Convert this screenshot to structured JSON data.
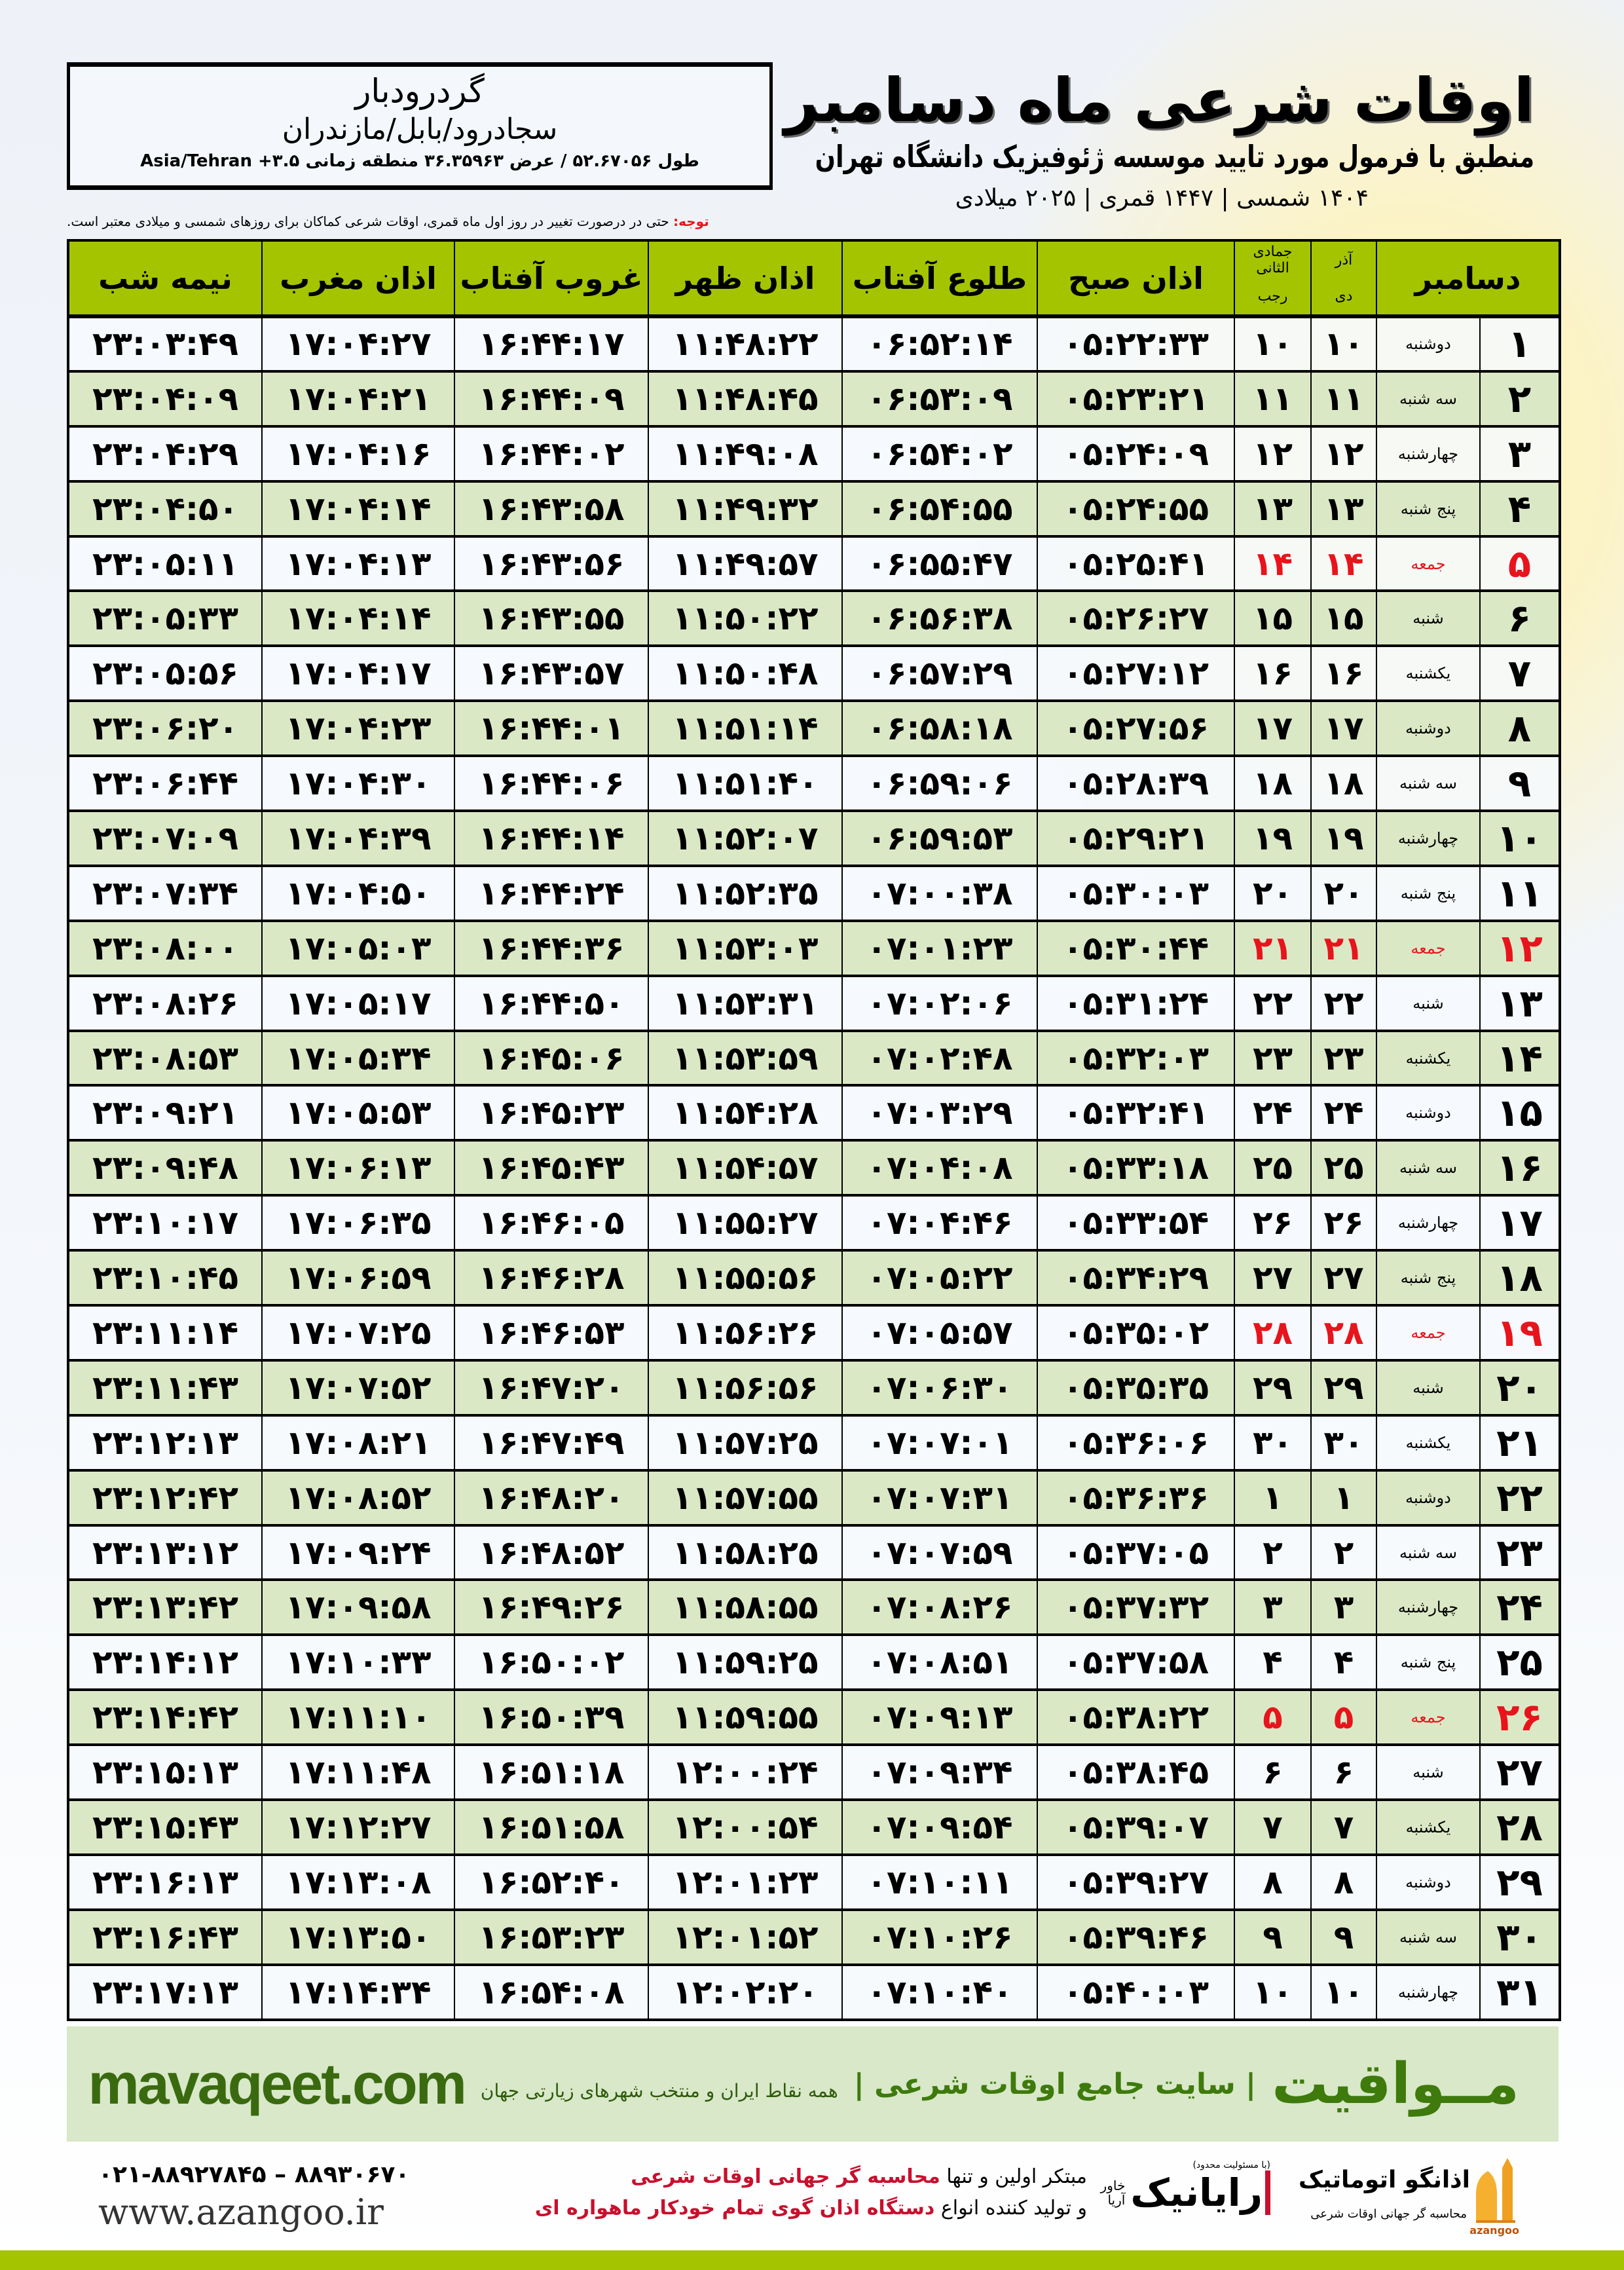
{
  "location": {
    "name": "گردرودبار",
    "path": "سجادرود/بابل/مازندران",
    "coords": "طول ۵۲.۶۷۰۵۶ / عرض ۳۶.۳۵۹۶۳ منطقه زمانی ۳.۵+ Asia/Tehran"
  },
  "header": {
    "title": "اوقات شرعی ماه دسامبر",
    "subtitle": "منطبق با فرمول مورد تایید موسسه ژئوفیزیک دانشگاه تهران",
    "years": "۱۴۰۴ شمسی | ۱۴۴۷ قمری | ۲۰۲۵ میلادی"
  },
  "note": {
    "label": "توجه:",
    "text": " حتی در درصورت تغییر در روز اول ماه قمری، اوقات شرعی کماکان برای روزهای شمسی و میلادی معتبر است."
  },
  "table": {
    "columns": {
      "month": "دسامبر",
      "shamsi_top": "آذر",
      "shamsi_bottom": "دی",
      "qamari_top": "جمادی الثانی",
      "qamari_bottom": "رجب",
      "sobh": "اذان صبح",
      "tolu": "طلوع آفتاب",
      "zohr": "اذان ظهر",
      "ghorub": "غروب آفتاب",
      "maghrib": "اذان مغرب",
      "nime": "نیمه شب"
    },
    "friday_color": "#e8141c",
    "header_color": "#a5c400",
    "rows": [
      [
        "۱",
        "دوشنبه",
        "۱۰",
        "۱۰",
        "۰۵:۲۲:۳۳",
        "۰۶:۵۲:۱۴",
        "۱۱:۴۸:۲۲",
        "۱۶:۴۴:۱۷",
        "۱۷:۰۴:۲۷",
        "۲۳:۰۳:۴۹"
      ],
      [
        "۲",
        "سه شنبه",
        "۱۱",
        "۱۱",
        "۰۵:۲۳:۲۱",
        "۰۶:۵۳:۰۹",
        "۱۱:۴۸:۴۵",
        "۱۶:۴۴:۰۹",
        "۱۷:۰۴:۲۱",
        "۲۳:۰۴:۰۹"
      ],
      [
        "۳",
        "چهارشنبه",
        "۱۲",
        "۱۲",
        "۰۵:۲۴:۰۹",
        "۰۶:۵۴:۰۲",
        "۱۱:۴۹:۰۸",
        "۱۶:۴۴:۰۲",
        "۱۷:۰۴:۱۶",
        "۲۳:۰۴:۲۹"
      ],
      [
        "۴",
        "پنج شنبه",
        "۱۳",
        "۱۳",
        "۰۵:۲۴:۵۵",
        "۰۶:۵۴:۵۵",
        "۱۱:۴۹:۳۲",
        "۱۶:۴۳:۵۸",
        "۱۷:۰۴:۱۴",
        "۲۳:۰۴:۵۰"
      ],
      [
        "۵",
        "جمعه",
        "۱۴",
        "۱۴",
        "۰۵:۲۵:۴۱",
        "۰۶:۵۵:۴۷",
        "۱۱:۴۹:۵۷",
        "۱۶:۴۳:۵۶",
        "۱۷:۰۴:۱۳",
        "۲۳:۰۵:۱۱"
      ],
      [
        "۶",
        "شنبه",
        "۱۵",
        "۱۵",
        "۰۵:۲۶:۲۷",
        "۰۶:۵۶:۳۸",
        "۱۱:۵۰:۲۲",
        "۱۶:۴۳:۵۵",
        "۱۷:۰۴:۱۴",
        "۲۳:۰۵:۳۳"
      ],
      [
        "۷",
        "یکشنبه",
        "۱۶",
        "۱۶",
        "۰۵:۲۷:۱۲",
        "۰۶:۵۷:۲۹",
        "۱۱:۵۰:۴۸",
        "۱۶:۴۳:۵۷",
        "۱۷:۰۴:۱۷",
        "۲۳:۰۵:۵۶"
      ],
      [
        "۸",
        "دوشنبه",
        "۱۷",
        "۱۷",
        "۰۵:۲۷:۵۶",
        "۰۶:۵۸:۱۸",
        "۱۱:۵۱:۱۴",
        "۱۶:۴۴:۰۱",
        "۱۷:۰۴:۲۳",
        "۲۳:۰۶:۲۰"
      ],
      [
        "۹",
        "سه شنبه",
        "۱۸",
        "۱۸",
        "۰۵:۲۸:۳۹",
        "۰۶:۵۹:۰۶",
        "۱۱:۵۱:۴۰",
        "۱۶:۴۴:۰۶",
        "۱۷:۰۴:۳۰",
        "۲۳:۰۶:۴۴"
      ],
      [
        "۱۰",
        "چهارشنبه",
        "۱۹",
        "۱۹",
        "۰۵:۲۹:۲۱",
        "۰۶:۵۹:۵۳",
        "۱۱:۵۲:۰۷",
        "۱۶:۴۴:۱۴",
        "۱۷:۰۴:۳۹",
        "۲۳:۰۷:۰۹"
      ],
      [
        "۱۱",
        "پنج شنبه",
        "۲۰",
        "۲۰",
        "۰۵:۳۰:۰۳",
        "۰۷:۰۰:۳۸",
        "۱۱:۵۲:۳۵",
        "۱۶:۴۴:۲۴",
        "۱۷:۰۴:۵۰",
        "۲۳:۰۷:۳۴"
      ],
      [
        "۱۲",
        "جمعه",
        "۲۱",
        "۲۱",
        "۰۵:۳۰:۴۴",
        "۰۷:۰۱:۲۳",
        "۱۱:۵۳:۰۳",
        "۱۶:۴۴:۳۶",
        "۱۷:۰۵:۰۳",
        "۲۳:۰۸:۰۰"
      ],
      [
        "۱۳",
        "شنبه",
        "۲۲",
        "۲۲",
        "۰۵:۳۱:۲۴",
        "۰۷:۰۲:۰۶",
        "۱۱:۵۳:۳۱",
        "۱۶:۴۴:۵۰",
        "۱۷:۰۵:۱۷",
        "۲۳:۰۸:۲۶"
      ],
      [
        "۱۴",
        "یکشنبه",
        "۲۳",
        "۲۳",
        "۰۵:۳۲:۰۳",
        "۰۷:۰۲:۴۸",
        "۱۱:۵۳:۵۹",
        "۱۶:۴۵:۰۶",
        "۱۷:۰۵:۳۴",
        "۲۳:۰۸:۵۳"
      ],
      [
        "۱۵",
        "دوشنبه",
        "۲۴",
        "۲۴",
        "۰۵:۳۲:۴۱",
        "۰۷:۰۳:۲۹",
        "۱۱:۵۴:۲۸",
        "۱۶:۴۵:۲۳",
        "۱۷:۰۵:۵۳",
        "۲۳:۰۹:۲۱"
      ],
      [
        "۱۶",
        "سه شنبه",
        "۲۵",
        "۲۵",
        "۰۵:۳۳:۱۸",
        "۰۷:۰۴:۰۸",
        "۱۱:۵۴:۵۷",
        "۱۶:۴۵:۴۳",
        "۱۷:۰۶:۱۳",
        "۲۳:۰۹:۴۸"
      ],
      [
        "۱۷",
        "چهارشنبه",
        "۲۶",
        "۲۶",
        "۰۵:۳۳:۵۴",
        "۰۷:۰۴:۴۶",
        "۱۱:۵۵:۲۷",
        "۱۶:۴۶:۰۵",
        "۱۷:۰۶:۳۵",
        "۲۳:۱۰:۱۷"
      ],
      [
        "۱۸",
        "پنج شنبه",
        "۲۷",
        "۲۷",
        "۰۵:۳۴:۲۹",
        "۰۷:۰۵:۲۲",
        "۱۱:۵۵:۵۶",
        "۱۶:۴۶:۲۸",
        "۱۷:۰۶:۵۹",
        "۲۳:۱۰:۴۵"
      ],
      [
        "۱۹",
        "جمعه",
        "۲۸",
        "۲۸",
        "۰۵:۳۵:۰۲",
        "۰۷:۰۵:۵۷",
        "۱۱:۵۶:۲۶",
        "۱۶:۴۶:۵۳",
        "۱۷:۰۷:۲۵",
        "۲۳:۱۱:۱۴"
      ],
      [
        "۲۰",
        "شنبه",
        "۲۹",
        "۲۹",
        "۰۵:۳۵:۳۵",
        "۰۷:۰۶:۳۰",
        "۱۱:۵۶:۵۶",
        "۱۶:۴۷:۲۰",
        "۱۷:۰۷:۵۲",
        "۲۳:۱۱:۴۳"
      ],
      [
        "۲۱",
        "یکشنبه",
        "۳۰",
        "۳۰",
        "۰۵:۳۶:۰۶",
        "۰۷:۰۷:۰۱",
        "۱۱:۵۷:۲۵",
        "۱۶:۴۷:۴۹",
        "۱۷:۰۸:۲۱",
        "۲۳:۱۲:۱۳"
      ],
      [
        "۲۲",
        "دوشنبه",
        "۱",
        "۱",
        "۰۵:۳۶:۳۶",
        "۰۷:۰۷:۳۱",
        "۱۱:۵۷:۵۵",
        "۱۶:۴۸:۲۰",
        "۱۷:۰۸:۵۲",
        "۲۳:۱۲:۴۲"
      ],
      [
        "۲۳",
        "سه شنبه",
        "۲",
        "۲",
        "۰۵:۳۷:۰۵",
        "۰۷:۰۷:۵۹",
        "۱۱:۵۸:۲۵",
        "۱۶:۴۸:۵۲",
        "۱۷:۰۹:۲۴",
        "۲۳:۱۳:۱۲"
      ],
      [
        "۲۴",
        "چهارشنبه",
        "۳",
        "۳",
        "۰۵:۳۷:۳۲",
        "۰۷:۰۸:۲۶",
        "۱۱:۵۸:۵۵",
        "۱۶:۴۹:۲۶",
        "۱۷:۰۹:۵۸",
        "۲۳:۱۳:۴۲"
      ],
      [
        "۲۵",
        "پنج شنبه",
        "۴",
        "۴",
        "۰۵:۳۷:۵۸",
        "۰۷:۰۸:۵۱",
        "۱۱:۵۹:۲۵",
        "۱۶:۵۰:۰۲",
        "۱۷:۱۰:۳۳",
        "۲۳:۱۴:۱۲"
      ],
      [
        "۲۶",
        "جمعه",
        "۵",
        "۵",
        "۰۵:۳۸:۲۲",
        "۰۷:۰۹:۱۳",
        "۱۱:۵۹:۵۵",
        "۱۶:۵۰:۳۹",
        "۱۷:۱۱:۱۰",
        "۲۳:۱۴:۴۲"
      ],
      [
        "۲۷",
        "شنبه",
        "۶",
        "۶",
        "۰۵:۳۸:۴۵",
        "۰۷:۰۹:۳۴",
        "۱۲:۰۰:۲۴",
        "۱۶:۵۱:۱۸",
        "۱۷:۱۱:۴۸",
        "۲۳:۱۵:۱۳"
      ],
      [
        "۲۸",
        "یکشنبه",
        "۷",
        "۷",
        "۰۵:۳۹:۰۷",
        "۰۷:۰۹:۵۴",
        "۱۲:۰۰:۵۴",
        "۱۶:۵۱:۵۸",
        "۱۷:۱۲:۲۷",
        "۲۳:۱۵:۴۳"
      ],
      [
        "۲۹",
        "دوشنبه",
        "۸",
        "۸",
        "۰۵:۳۹:۲۷",
        "۰۷:۱۰:۱۱",
        "۱۲:۰۱:۲۳",
        "۱۶:۵۲:۴۰",
        "۱۷:۱۳:۰۸",
        "۲۳:۱۶:۱۳"
      ],
      [
        "۳۰",
        "سه شنبه",
        "۹",
        "۹",
        "۰۵:۳۹:۴۶",
        "۰۷:۱۰:۲۶",
        "۱۲:۰۱:۵۲",
        "۱۶:۵۳:۲۳",
        "۱۷:۱۳:۵۰",
        "۲۳:۱۶:۴۳"
      ],
      [
        "۳۱",
        "چهارشنبه",
        "۱۰",
        "۱۰",
        "۰۵:۴۰:۰۳",
        "۰۷:۱۰:۴۰",
        "۱۲:۰۲:۲۰",
        "۱۶:۵۴:۰۸",
        "۱۷:۱۴:۳۴",
        "۲۳:۱۷:۱۳"
      ]
    ]
  },
  "footer": {
    "brand": "مــواقیت",
    "brand_sub": "| سایت جامع اوقات شرعی |",
    "brand_desc": "همه نقاط ایران و منتخب شهرهای زیارتی جهان",
    "site": "mavaqeet.com",
    "promo_line1_a": "مبتکر اولین و تنها ",
    "promo_line1_b": "محاسبه گر جهانی اوقات شرعی",
    "promo_line2_a": "و تولید کننده انواع ",
    "promo_line2_b": "دستگاه اذان گوی تمام خودکار ماهواره ای",
    "phone": "۰۲۱-۸۸۹۲۷۸۴۵ – ۸۸۹۳۰۶۷۰",
    "web": "www.azangoo.ir",
    "raianik": "رایانیک",
    "raianik_sub": "خاور آریا",
    "raianik_note": "(با مسئولیت محدود)",
    "azangoo_name": "اذانگو اتوماتیک",
    "azangoo_latin": "azangoo",
    "azangoo_tag": "محاسبه گر جهانی اوقات شرعی",
    "brand_color": "#3e7a0c",
    "accent_red": "#c8102e"
  }
}
